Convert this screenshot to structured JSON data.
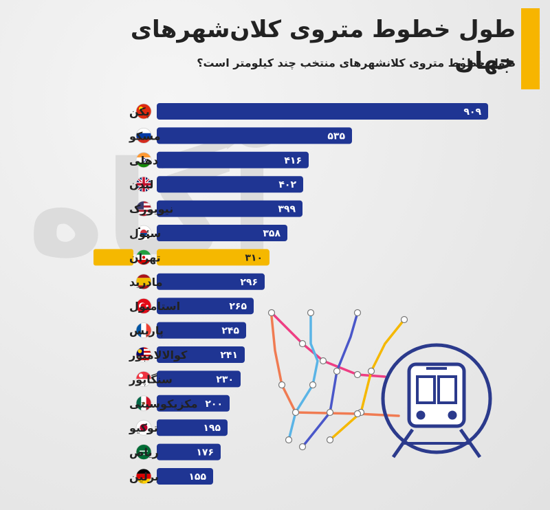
{
  "watermark_text": "آگاه",
  "chart_data": {
    "type": "bar",
    "orientation": "horizontal",
    "title": "طول خطوط متروی کلان‌شهرهای جهان",
    "subtitle": "طول خطوط متروی کلانشهرهای منتخب چند کیلومتر است؟",
    "xlabel": "",
    "ylabel": "",
    "grid": false,
    "legend": "none",
    "categories": [
      "پکن",
      "مسکو",
      "دهلی",
      "لندن",
      "نیویورک",
      "سئول",
      "تهران",
      "مادرید",
      "استامبول",
      "پاریس",
      "کوالالامپور",
      "سنگاپور",
      "مکزیکوسیتی",
      "توکیو",
      "ریاض",
      "برلین"
    ],
    "values": [
      909,
      535,
      416,
      402,
      399,
      358,
      310,
      296,
      265,
      245,
      241,
      230,
      200,
      195,
      176,
      155
    ],
    "value_labels": [
      "۹۰۹",
      "۵۳۵",
      "۴۱۶",
      "۴۰۲",
      "۳۹۹",
      "۳۵۸",
      "۳۱۰",
      "۲۹۶",
      "۲۶۵",
      "۲۴۵",
      "۲۴۱",
      "۲۳۰",
      "۲۰۰",
      "۱۹۵",
      "۱۷۶",
      "۱۵۵"
    ],
    "flags": [
      "china-flag-icon",
      "russia-flag-icon",
      "india-flag-icon",
      "uk-flag-icon",
      "usa-flag-icon",
      "south-korea-flag-icon",
      "iran-flag-icon",
      "spain-flag-icon",
      "turkey-flag-icon",
      "france-flag-icon",
      "malaysia-flag-icon",
      "singapore-flag-icon",
      "mexico-flag-icon",
      "japan-flag-icon",
      "saudi-arabia-flag-icon",
      "germany-flag-icon"
    ],
    "highlight": "تهران",
    "colors": {
      "bar": "#1f3593",
      "highlight": "#f5b800",
      "text": "#222222",
      "value_text": "#ffffff"
    }
  }
}
